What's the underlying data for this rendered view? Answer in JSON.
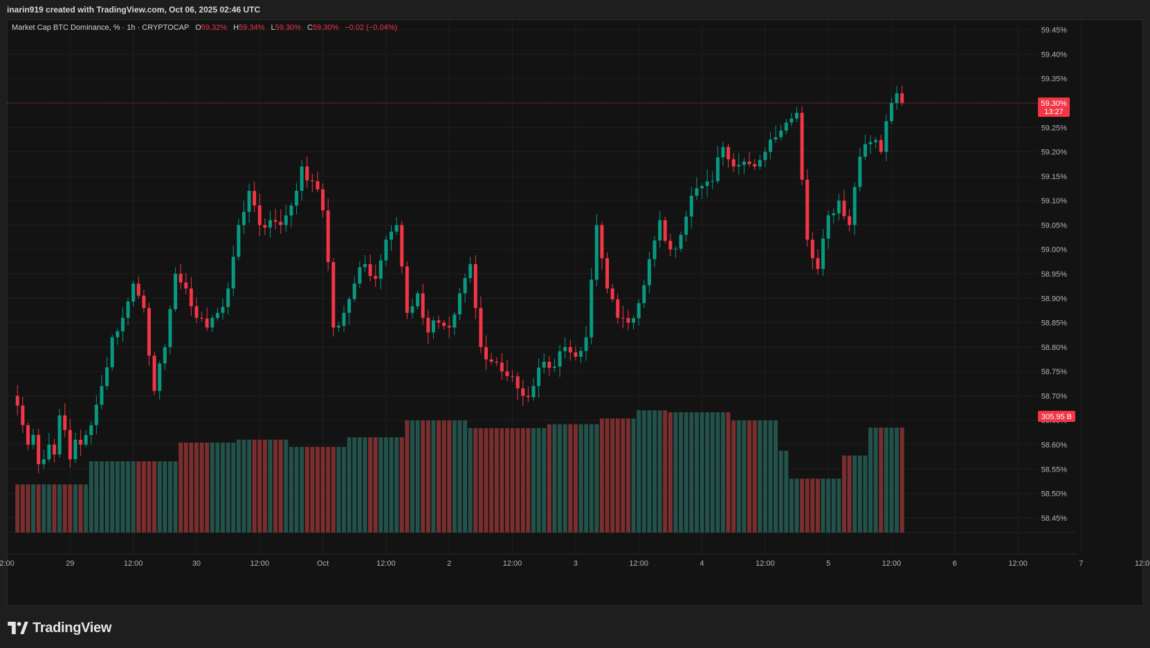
{
  "header": {
    "credit": "inarin919 created with TradingView.com, Oct 06, 2025 02:46 UTC"
  },
  "legend": {
    "title": "Market Cap BTC Dominance, % · 1h · CRYPTOCAP",
    "o_label": "O",
    "o_value": "59.32%",
    "h_label": "H",
    "h_value": "59.34%",
    "l_label": "L",
    "l_value": "59.30%",
    "c_label": "C",
    "c_value": "59.30%",
    "change": "−0.02 (−0.04%)"
  },
  "brand": {
    "name": "TradingView",
    "icon": "tradingview-logo-icon"
  },
  "colors": {
    "up": "#089981",
    "down": "#f23645",
    "up_vol": "#22524a",
    "down_vol": "#7a2e2e",
    "background": "#131313",
    "grid": "#1f1f1f"
  },
  "chart_data": {
    "type": "candlestick",
    "title": "Market Cap BTC Dominance, % · 1h · CRYPTOCAP",
    "interval": "1h",
    "y_unit": "%",
    "ylim": [
      58.42,
      59.47
    ],
    "y_ticks": [
      "59.45%",
      "59.40%",
      "59.35%",
      "59.30%",
      "59.25%",
      "59.20%",
      "59.15%",
      "59.10%",
      "59.05%",
      "59.00%",
      "58.95%",
      "58.90%",
      "58.85%",
      "58.80%",
      "58.75%",
      "58.70%",
      "58.65%",
      "58.60%",
      "58.55%",
      "58.50%",
      "58.45%"
    ],
    "x_ticks": [
      "2:00",
      "29",
      "12:00",
      "30",
      "12:00",
      "Oct",
      "12:00",
      "2",
      "12:00",
      "3",
      "12:00",
      "4",
      "12:00",
      "5",
      "12:00",
      "6",
      "12:00",
      "7",
      "12:00"
    ],
    "x_range_hours": [
      -2,
      193.8
    ],
    "grid": true,
    "last_price_label": "59.30%",
    "countdown_label": "13:27",
    "volume_label": "305.95 B",
    "anchors": [
      [
        0,
        58.68
      ],
      [
        1,
        58.64
      ],
      [
        2,
        58.6
      ],
      [
        3,
        58.62
      ],
      [
        4,
        58.56
      ],
      [
        5,
        58.57
      ],
      [
        6,
        58.6
      ],
      [
        7,
        58.58
      ],
      [
        8,
        58.66
      ],
      [
        9,
        58.63
      ],
      [
        10,
        58.57
      ],
      [
        11,
        58.61
      ],
      [
        12,
        58.6
      ],
      [
        14,
        58.64
      ],
      [
        16,
        58.72
      ],
      [
        18,
        58.82
      ],
      [
        20,
        58.86
      ],
      [
        22,
        58.93
      ],
      [
        24,
        58.88
      ],
      [
        26,
        58.71
      ],
      [
        28,
        58.8
      ],
      [
        30,
        58.95
      ],
      [
        32,
        58.92
      ],
      [
        34,
        58.86
      ],
      [
        36,
        58.84
      ],
      [
        38,
        58.87
      ],
      [
        40,
        58.92
      ],
      [
        42,
        59.05
      ],
      [
        44,
        59.12
      ],
      [
        46,
        59.05
      ],
      [
        48,
        59.06
      ],
      [
        50,
        59.05
      ],
      [
        52,
        59.09
      ],
      [
        54,
        59.17
      ],
      [
        56,
        59.14
      ],
      [
        58,
        59.08
      ],
      [
        60,
        58.84
      ],
      [
        62,
        58.87
      ],
      [
        64,
        58.93
      ],
      [
        66,
        58.97
      ],
      [
        68,
        58.94
      ],
      [
        70,
        59.02
      ],
      [
        72,
        59.05
      ],
      [
        74,
        58.87
      ],
      [
        76,
        58.91
      ],
      [
        78,
        58.83
      ],
      [
        80,
        58.85
      ],
      [
        82,
        58.84
      ],
      [
        84,
        58.91
      ],
      [
        86,
        58.97
      ],
      [
        88,
        58.8
      ],
      [
        90,
        58.77
      ],
      [
        92,
        58.75
      ],
      [
        94,
        58.74
      ],
      [
        96,
        58.7
      ],
      [
        98,
        58.72
      ],
      [
        100,
        58.77
      ],
      [
        102,
        58.76
      ],
      [
        104,
        58.8
      ],
      [
        106,
        58.78
      ],
      [
        108,
        58.82
      ],
      [
        110,
        59.05
      ],
      [
        112,
        58.92
      ],
      [
        114,
        58.86
      ],
      [
        116,
        58.85
      ],
      [
        118,
        58.89
      ],
      [
        120,
        58.98
      ],
      [
        122,
        59.06
      ],
      [
        124,
        59.0
      ],
      [
        126,
        59.03
      ],
      [
        128,
        59.11
      ],
      [
        130,
        59.13
      ],
      [
        132,
        59.14
      ],
      [
        134,
        59.21
      ],
      [
        136,
        59.17
      ],
      [
        138,
        59.18
      ],
      [
        140,
        59.17
      ],
      [
        142,
        59.2
      ],
      [
        144,
        59.23
      ],
      [
        146,
        59.26
      ],
      [
        148,
        59.28
      ],
      [
        150,
        59.02
      ],
      [
        152,
        58.96
      ],
      [
        154,
        59.07
      ],
      [
        156,
        59.1
      ],
      [
        158,
        59.05
      ],
      [
        160,
        59.19
      ],
      [
        162,
        59.22
      ],
      [
        164,
        59.2
      ],
      [
        166,
        59.3
      ],
      [
        167,
        59.32
      ],
      [
        168,
        59.3
      ]
    ],
    "volume_steps": [
      [
        0,
        13,
        0.1
      ],
      [
        14,
        20,
        0.148
      ],
      [
        21,
        30,
        0.148
      ],
      [
        31,
        41,
        0.187
      ],
      [
        42,
        51,
        0.193
      ],
      [
        52,
        62,
        0.178
      ],
      [
        63,
        73,
        0.198
      ],
      [
        74,
        85,
        0.233
      ],
      [
        86,
        93,
        0.217
      ],
      [
        94,
        100,
        0.217
      ],
      [
        101,
        110,
        0.225
      ],
      [
        111,
        117,
        0.237
      ],
      [
        118,
        123,
        0.254
      ],
      [
        124,
        135,
        0.25
      ],
      [
        136,
        144,
        0.233
      ],
      [
        145,
        146,
        0.17
      ],
      [
        147,
        156,
        0.112
      ],
      [
        157,
        161,
        0.16
      ],
      [
        162,
        168,
        0.218
      ]
    ]
  }
}
